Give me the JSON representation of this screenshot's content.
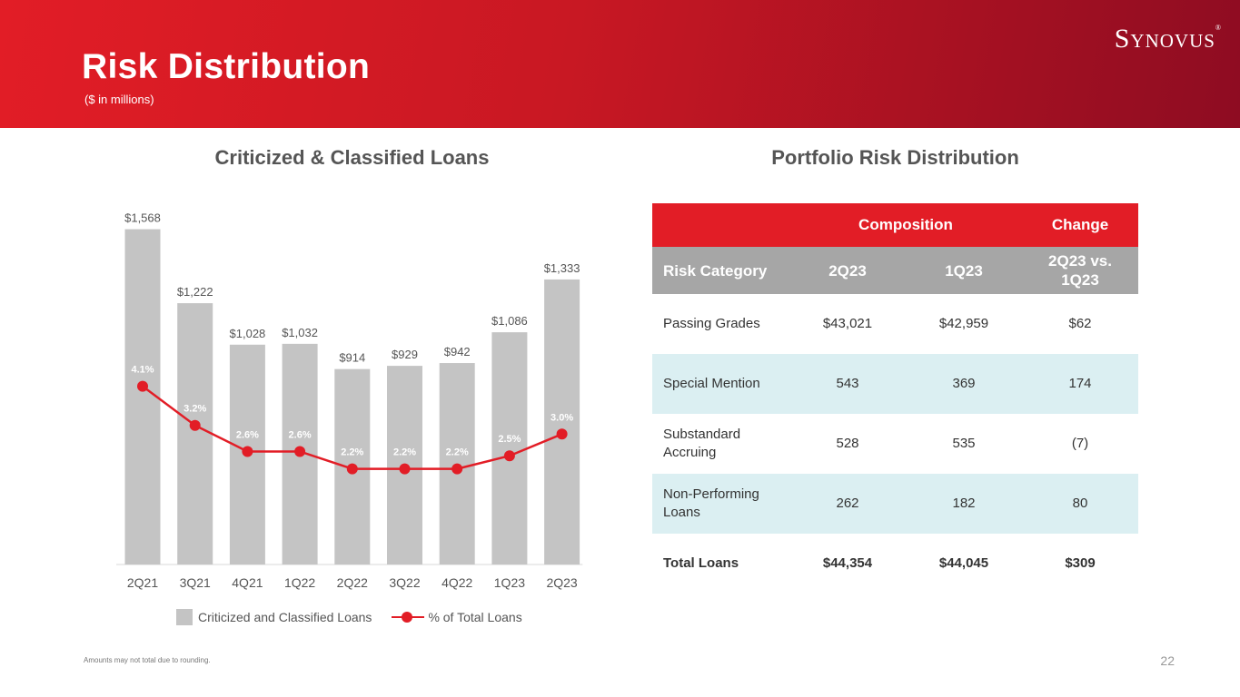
{
  "header": {
    "title": "Risk Distribution",
    "subtitle": "($ in millions)",
    "logo": "Synovus"
  },
  "left_section": {
    "title": "Criticized & Classified Loans"
  },
  "right_section": {
    "title": "Portfolio Risk Distribution"
  },
  "chart_data": {
    "type": "bar",
    "title": "Criticized & Classified Loans",
    "categories": [
      "2Q21",
      "3Q21",
      "4Q21",
      "1Q22",
      "2Q22",
      "3Q22",
      "4Q22",
      "1Q23",
      "2Q23"
    ],
    "series": [
      {
        "name": "Criticized and Classified Loans",
        "type": "bar",
        "values": [
          1568,
          1222,
          1028,
          1032,
          914,
          929,
          942,
          1086,
          1333
        ],
        "labels": [
          "$1,568",
          "$1,222",
          "$1,028",
          "$1,032",
          "$914",
          "$929",
          "$942",
          "$1,086",
          "$1,333"
        ],
        "color": "#c4c4c4"
      },
      {
        "name": "% of Total Loans",
        "type": "line",
        "values": [
          4.1,
          3.2,
          2.6,
          2.6,
          2.2,
          2.2,
          2.2,
          2.5,
          3.0
        ],
        "labels": [
          "4.1%",
          "3.2%",
          "2.6%",
          "2.6%",
          "2.2%",
          "2.2%",
          "2.2%",
          "2.5%",
          "3.0%"
        ],
        "color": "#e21d26"
      }
    ],
    "bar_ylim": [
      0,
      1600
    ],
    "line_ylim": [
      0,
      6.2
    ],
    "legend": "bottom-center",
    "grid": false
  },
  "legend": {
    "bar_label": "Criticized and Classified Loans",
    "line_label": "% of Total Loans"
  },
  "table": {
    "group_headers": {
      "composition": "Composition",
      "change": "Change"
    },
    "columns": [
      "Risk Category",
      "2Q23",
      "1Q23",
      "2Q23 vs. 1Q23"
    ],
    "rows": [
      {
        "category": "Passing Grades",
        "q2": "$43,021",
        "q1": "$42,959",
        "change": "$62"
      },
      {
        "category": "Special Mention",
        "q2": "543",
        "q1": "369",
        "change": "174"
      },
      {
        "category": "Substandard Accruing",
        "q2": "528",
        "q1": "535",
        "change": "(7)"
      },
      {
        "category": "Non-Performing Loans",
        "q2": "262",
        "q1": "182",
        "change": "80"
      },
      {
        "category": "Total Loans",
        "q2": "$44,354",
        "q1": "$44,045",
        "change": "$309"
      }
    ]
  },
  "footnote": "Amounts may not total due to rounding.",
  "page_number": "22",
  "colors": {
    "brand_red": "#e21d26",
    "bar_gray": "#c4c4c4",
    "header_gray": "#a6a6a6",
    "row_alt": "#dbeff2"
  }
}
